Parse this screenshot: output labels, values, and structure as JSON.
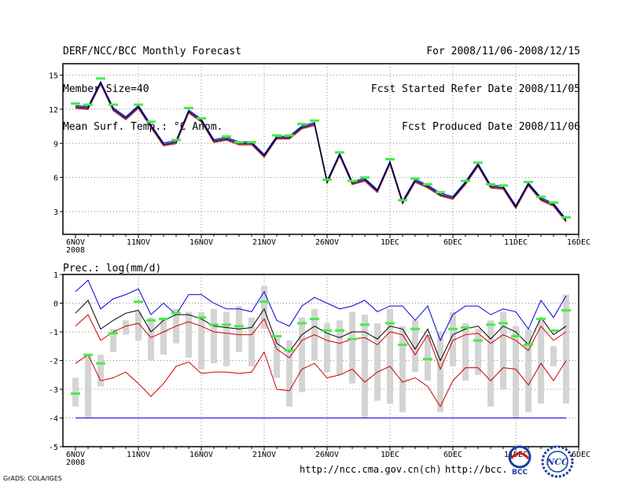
{
  "header": {
    "title": "DERF/NCC/BCC Monthly Forecast",
    "member_size": "Member Size=40",
    "variable": "Mean Surf. Temp.: °C Anom.",
    "period": "For 2008/11/06-2008/12/15",
    "started": "Fcst Started Refer Date 2008/11/05",
    "produced": "Fcst Produced Date 2008/11/06"
  },
  "footer": {
    "url1": "http://ncc.cma.gov.cn(ch)",
    "url2": "http://bcc.",
    "credit": "GrADS: COLA/IGES",
    "logo_bcc": "BCC",
    "logo_ncc": "NCC"
  },
  "colors": {
    "mean": "#000000",
    "upper": "#0000dd",
    "lower": "#cc0000",
    "marker": "#44ee44",
    "box": "#d4d4d4",
    "grid": "#888888"
  },
  "chart_data": [
    {
      "type": "line",
      "title": "Mean Surf. Temp.: °C Anom.",
      "x": [
        "2008-11-06",
        "2008-11-07",
        "2008-11-08",
        "2008-11-09",
        "2008-11-10",
        "2008-11-11",
        "2008-11-12",
        "2008-11-13",
        "2008-11-14",
        "2008-11-15",
        "2008-11-16",
        "2008-11-17",
        "2008-11-18",
        "2008-11-19",
        "2008-11-20",
        "2008-11-21",
        "2008-11-22",
        "2008-11-23",
        "2008-11-24",
        "2008-11-25",
        "2008-11-26",
        "2008-11-27",
        "2008-11-28",
        "2008-11-29",
        "2008-11-30",
        "2008-12-01",
        "2008-12-02",
        "2008-12-03",
        "2008-12-04",
        "2008-12-05",
        "2008-12-06",
        "2008-12-07",
        "2008-12-08",
        "2008-12-09",
        "2008-12-10",
        "2008-12-11",
        "2008-12-12",
        "2008-12-13",
        "2008-12-14",
        "2008-12-15"
      ],
      "xticks": [
        "6NOV",
        "11NOV",
        "16NOV",
        "21NOV",
        "26NOV",
        "1DEC",
        "6DEC",
        "11DEC",
        "16DEC"
      ],
      "xtick_year": "2008",
      "ylim": [
        1,
        16
      ],
      "yticks": [
        "3",
        "6",
        "9",
        "12",
        "15"
      ],
      "series": [
        {
          "name": "ensemble mean",
          "values": [
            12.2,
            12.1,
            14.3,
            12.0,
            11.2,
            12.2,
            10.5,
            8.9,
            9.1,
            11.8,
            11.0,
            9.2,
            9.4,
            9.0,
            9.0,
            7.9,
            9.5,
            9.5,
            10.4,
            10.7,
            5.6,
            8.0,
            5.5,
            5.8,
            4.8,
            7.3,
            3.8,
            5.7,
            5.2,
            4.5,
            4.2,
            5.5,
            7.1,
            5.2,
            5.1,
            3.4,
            5.4,
            4.1,
            3.6,
            2.2
          ]
        },
        {
          "name": "obs markers",
          "values": [
            12.5,
            12.4,
            14.7,
            12.4,
            null,
            12.4,
            10.9,
            null,
            9.3,
            12.1,
            11.2,
            null,
            9.6,
            9.1,
            9.1,
            null,
            9.7,
            9.7,
            10.7,
            11.0,
            5.8,
            8.2,
            5.7,
            6.0,
            null,
            7.6,
            4.0,
            5.9,
            5.4,
            4.7,
            null,
            5.7,
            7.3,
            5.4,
            5.3,
            null,
            5.6,
            4.3,
            3.8,
            2.5
          ]
        }
      ]
    },
    {
      "type": "line",
      "title": "Prec.: log(mm/d)",
      "x_same_as_first": true,
      "xticks": [
        "6NOV",
        "11NOV",
        "16NOV",
        "21NOV",
        "26NOV",
        "1DEC",
        "6DEC",
        "11DEC",
        "16DEC"
      ],
      "xtick_year": "2008",
      "ylim": [
        -5,
        1
      ],
      "yticks": [
        "-5",
        "-4",
        "-3",
        "-2",
        "-1",
        "0",
        "1"
      ],
      "series": [
        {
          "name": "upper",
          "values": [
            0.4,
            0.8,
            -0.2,
            0.15,
            0.3,
            0.5,
            -0.4,
            0.0,
            -0.4,
            0.3,
            0.3,
            0.0,
            -0.2,
            -0.2,
            -0.3,
            0.4,
            -0.6,
            -0.8,
            -0.1,
            0.2,
            0.0,
            -0.2,
            -0.1,
            0.1,
            -0.3,
            -0.1,
            -0.1,
            -0.6,
            -0.1,
            -1.3,
            -0.4,
            -0.1,
            -0.1,
            -0.4,
            -0.2,
            -0.3,
            -0.9,
            0.1,
            -0.5,
            0.25
          ]
        },
        {
          "name": "mean",
          "values": [
            -0.35,
            0.1,
            -0.9,
            -0.6,
            -0.35,
            -0.25,
            -1.0,
            -0.6,
            -0.4,
            -0.4,
            -0.55,
            -0.8,
            -0.85,
            -0.9,
            -0.85,
            -0.2,
            -1.4,
            -1.7,
            -1.1,
            -0.8,
            -1.05,
            -1.2,
            -1.0,
            -1.0,
            -1.25,
            -0.8,
            -0.9,
            -1.6,
            -0.9,
            -2.0,
            -1.1,
            -0.9,
            -0.8,
            -1.25,
            -0.8,
            -1.0,
            -1.45,
            -0.5,
            -1.1,
            -0.8
          ]
        },
        {
          "name": "lower",
          "values": [
            -0.8,
            -0.4,
            -1.3,
            -1.0,
            -0.8,
            -0.7,
            -1.2,
            -1.0,
            -0.8,
            -0.65,
            -0.8,
            -1.0,
            -1.05,
            -1.1,
            -1.1,
            -0.55,
            -1.6,
            -1.9,
            -1.3,
            -1.1,
            -1.3,
            -1.4,
            -1.25,
            -1.2,
            -1.45,
            -1.0,
            -1.1,
            -1.8,
            -1.1,
            -2.3,
            -1.3,
            -1.1,
            -1.05,
            -1.4,
            -1.1,
            -1.3,
            -1.65,
            -0.8,
            -1.3,
            -1.0
          ]
        },
        {
          "name": "min",
          "values": [
            -2.1,
            -1.8,
            -2.7,
            -2.6,
            -2.4,
            -2.8,
            -3.25,
            -2.8,
            -2.2,
            -2.05,
            -2.45,
            -2.4,
            -2.4,
            -2.45,
            -2.4,
            -1.7,
            -3.0,
            -3.05,
            -2.3,
            -2.1,
            -2.6,
            -2.5,
            -2.3,
            -2.75,
            -2.4,
            -2.2,
            -2.75,
            -2.6,
            -2.9,
            -3.6,
            -2.7,
            -2.25,
            -2.25,
            -2.7,
            -2.25,
            -2.3,
            -2.85,
            -2.1,
            -2.7,
            -2.0
          ]
        },
        {
          "name": "obs markers",
          "values": [
            -3.15,
            -1.8,
            -2.1,
            -1.05,
            null,
            0.05,
            -0.6,
            -0.55,
            -0.35,
            null,
            -0.5,
            -0.75,
            -0.75,
            -0.8,
            null,
            0.05,
            -1.15,
            -1.65,
            -0.7,
            -0.55,
            -0.95,
            -0.95,
            -1.25,
            -0.75,
            null,
            -0.7,
            -1.45,
            -0.9,
            -1.95,
            null,
            -0.9,
            -0.85,
            -1.3,
            -0.75,
            -0.7,
            -1.15,
            -1.45,
            -0.55,
            -0.95,
            -0.25
          ]
        }
      ],
      "boxes": [
        [
          -2.6,
          -3.6
        ],
        [
          -1.8,
          -4.0
        ],
        [
          -1.8,
          -2.9
        ],
        [
          -0.9,
          -1.7
        ],
        [
          -0.6,
          -1.1
        ],
        [
          -0.3,
          -1.3
        ],
        [
          -0.5,
          -2.0
        ],
        [
          -0.5,
          -1.8
        ],
        [
          -0.2,
          -1.4
        ],
        [
          -0.3,
          -1.9
        ],
        [
          -0.3,
          -2.3
        ],
        [
          -0.2,
          -2.1
        ],
        [
          -0.3,
          -2.2
        ],
        [
          -0.1,
          -1.7
        ],
        [
          -0.5,
          -2.2
        ],
        [
          0.6,
          -0.9
        ],
        [
          -1.2,
          -2.6
        ],
        [
          -1.3,
          -3.6
        ],
        [
          -0.5,
          -3.1
        ],
        [
          -0.2,
          -2.0
        ],
        [
          -0.7,
          -2.4
        ],
        [
          -0.6,
          -2.5
        ],
        [
          -0.3,
          -2.8
        ],
        [
          -0.4,
          -4.0
        ],
        [
          -0.7,
          -3.4
        ],
        [
          -0.2,
          -3.5
        ],
        [
          -0.8,
          -3.8
        ],
        [
          -0.6,
          -2.4
        ],
        [
          -1.1,
          -2.7
        ],
        [
          -1.0,
          -3.8
        ],
        [
          -0.3,
          -2.2
        ],
        [
          -0.7,
          -2.7
        ],
        [
          -0.9,
          -2.5
        ],
        [
          -0.6,
          -3.6
        ],
        [
          -0.3,
          -3.0
        ],
        [
          -0.8,
          -4.0
        ],
        [
          -0.9,
          -3.8
        ],
        [
          -0.6,
          -3.5
        ],
        [
          -1.5,
          -2.2
        ],
        [
          0.3,
          -3.5
        ]
      ],
      "reference_line": -4.0
    }
  ]
}
